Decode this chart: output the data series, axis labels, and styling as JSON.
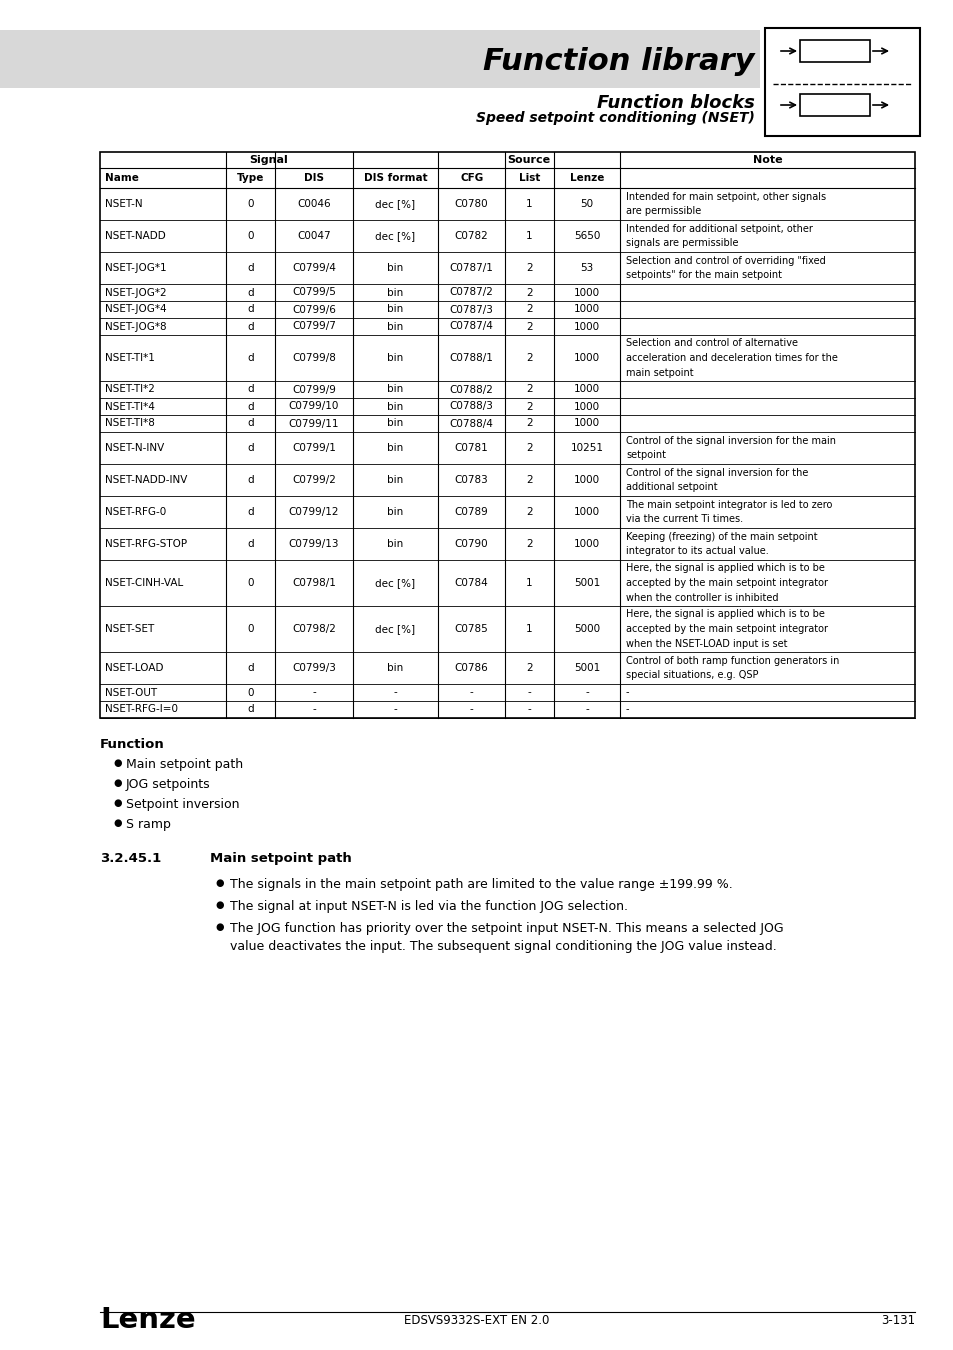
{
  "title": "Function library",
  "subtitle1": "Function blocks",
  "subtitle2": "Speed setpoint conditioning (NSET)",
  "rows": [
    [
      "NSET-N",
      "0",
      "C0046",
      "dec [%]",
      "C0780",
      "1",
      "50",
      "Intended for main setpoint, other signals\nare permissible"
    ],
    [
      "NSET-NADD",
      "0",
      "C0047",
      "dec [%]",
      "C0782",
      "1",
      "5650",
      "Intended for additional setpoint, other\nsignals are permissible"
    ],
    [
      "NSET-JOG*1",
      "d",
      "C0799/4",
      "bin",
      "C0787/1",
      "2",
      "53",
      "Selection and control of overriding \"fixed\nsetpoints\" for the main setpoint"
    ],
    [
      "NSET-JOG*2",
      "d",
      "C0799/5",
      "bin",
      "C0787/2",
      "2",
      "1000",
      ""
    ],
    [
      "NSET-JOG*4",
      "d",
      "C0799/6",
      "bin",
      "C0787/3",
      "2",
      "1000",
      ""
    ],
    [
      "NSET-JOG*8",
      "d",
      "C0799/7",
      "bin",
      "C0787/4",
      "2",
      "1000",
      ""
    ],
    [
      "NSET-TI*1",
      "d",
      "C0799/8",
      "bin",
      "C0788/1",
      "2",
      "1000",
      "Selection and control of alternative\nacceleration and deceleration times for the\nmain setpoint"
    ],
    [
      "NSET-TI*2",
      "d",
      "C0799/9",
      "bin",
      "C0788/2",
      "2",
      "1000",
      ""
    ],
    [
      "NSET-TI*4",
      "d",
      "C0799/10",
      "bin",
      "C0788/3",
      "2",
      "1000",
      ""
    ],
    [
      "NSET-TI*8",
      "d",
      "C0799/11",
      "bin",
      "C0788/4",
      "2",
      "1000",
      ""
    ],
    [
      "NSET-N-INV",
      "d",
      "C0799/1",
      "bin",
      "C0781",
      "2",
      "10251",
      "Control of the signal inversion for the main\nsetpoint"
    ],
    [
      "NSET-NADD-INV",
      "d",
      "C0799/2",
      "bin",
      "C0783",
      "2",
      "1000",
      "Control of the signal inversion for the\nadditional setpoint"
    ],
    [
      "NSET-RFG-0",
      "d",
      "C0799/12",
      "bin",
      "C0789",
      "2",
      "1000",
      "The main setpoint integrator is led to zero\nvia the current Ti times."
    ],
    [
      "NSET-RFG-STOP",
      "d",
      "C0799/13",
      "bin",
      "C0790",
      "2",
      "1000",
      "Keeping (freezing) of the main setpoint\nintegrator to its actual value."
    ],
    [
      "NSET-CINH-VAL",
      "0",
      "C0798/1",
      "dec [%]",
      "C0784",
      "1",
      "5001",
      "Here, the signal is applied which is to be\naccepted by the main setpoint integrator\nwhen the controller is inhibited"
    ],
    [
      "NSET-SET",
      "0",
      "C0798/2",
      "dec [%]",
      "C0785",
      "1",
      "5000",
      "Here, the signal is applied which is to be\naccepted by the main setpoint integrator\nwhen the NSET-LOAD input is set"
    ],
    [
      "NSET-LOAD",
      "d",
      "C0799/3",
      "bin",
      "C0786",
      "2",
      "5001",
      "Control of both ramp function generators in\nspecial situations, e.g. QSP"
    ],
    [
      "NSET-OUT",
      "0",
      "-",
      "-",
      "-",
      "-",
      "-",
      "-"
    ],
    [
      "NSET-RFG-I=0",
      "d",
      "-",
      "-",
      "-",
      "-",
      "-",
      "-"
    ]
  ],
  "note_line_counts": [
    2,
    2,
    2,
    1,
    1,
    1,
    3,
    1,
    1,
    1,
    2,
    2,
    2,
    2,
    3,
    3,
    2,
    1,
    1
  ],
  "function_title": "Function",
  "function_items": [
    "Main setpoint path",
    "JOG setpoints",
    "Setpoint inversion",
    "S ramp"
  ],
  "section_num": "3.2.45.1",
  "section_title": "Main setpoint path",
  "section_bullets": [
    "The signals in the main setpoint path are limited to the value range ±199.99 %.",
    "The signal at input NSET-N is led via the function JOG selection.",
    "The JOG function has priority over the setpoint input NSET-N. This means a selected JOG\nvalue deactivates the input. The subsequent signal conditioning the JOG value instead."
  ],
  "footer_left": "Lenze",
  "footer_center": "EDSVS9332S-EXT EN 2.0",
  "footer_right": "3-131"
}
